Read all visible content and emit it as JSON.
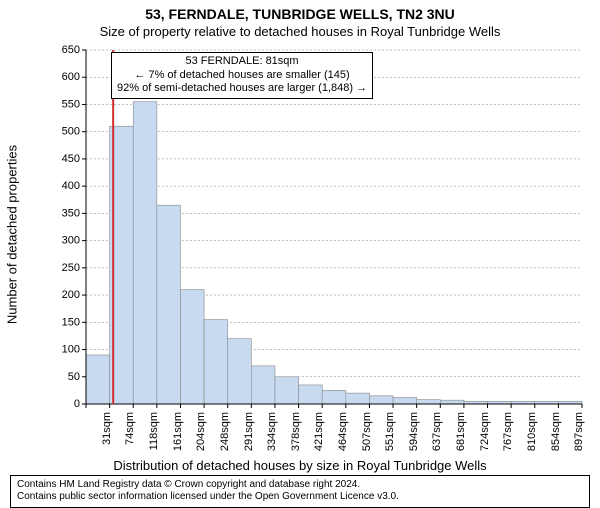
{
  "title": "53, FERNDALE, TUNBRIDGE WELLS, TN2 3NU",
  "subtitle": "Size of property relative to detached houses in Royal Tunbridge Wells",
  "ylabel": "Number of detached properties",
  "xlabel": "Distribution of detached houses by size in Royal Tunbridge Wells",
  "footer_l1": "Contains HM Land Registry data © Crown copyright and database right 2024.",
  "footer_l2": "Contains public sector information licensed under the Open Government Licence v3.0.",
  "chart": {
    "type": "bar",
    "y_min": 0,
    "y_max": 650,
    "y_tick_step": 50,
    "y_ticks": [
      0,
      50,
      100,
      150,
      200,
      250,
      300,
      350,
      400,
      450,
      500,
      550,
      600,
      650
    ],
    "x_labels": [
      "31sqm",
      "74sqm",
      "118sqm",
      "161sqm",
      "204sqm",
      "248sqm",
      "291sqm",
      "334sqm",
      "378sqm",
      "421sqm",
      "464sqm",
      "507sqm",
      "551sqm",
      "594sqm",
      "637sqm",
      "681sqm",
      "724sqm",
      "767sqm",
      "810sqm",
      "854sqm",
      "897sqm"
    ],
    "values": [
      90,
      510,
      555,
      365,
      210,
      155,
      120,
      70,
      50,
      35,
      25,
      20,
      15,
      12,
      8,
      7,
      5,
      5,
      5,
      5,
      5
    ],
    "bar_fill": "#c7daf0",
    "bar_stroke": "#888888",
    "grid_color": "#808080",
    "background_color": "#ffffff",
    "axis_color": "#000000",
    "marker_color": "#d03030",
    "marker_x_index": 1.15,
    "title_fontsize": 14,
    "subtitle_fontsize": 13,
    "axis_label_fontsize": 13,
    "tick_fontsize": 11,
    "annot_fontsize": 11,
    "footer_fontsize": 10,
    "bar_width_ratio": 1.0
  },
  "annotation": {
    "l1": "53 FERNDALE: 81sqm",
    "l2": "← 7% of detached houses are smaller (145)",
    "l3": "92% of semi-detached houses are larger (1,848) →"
  }
}
